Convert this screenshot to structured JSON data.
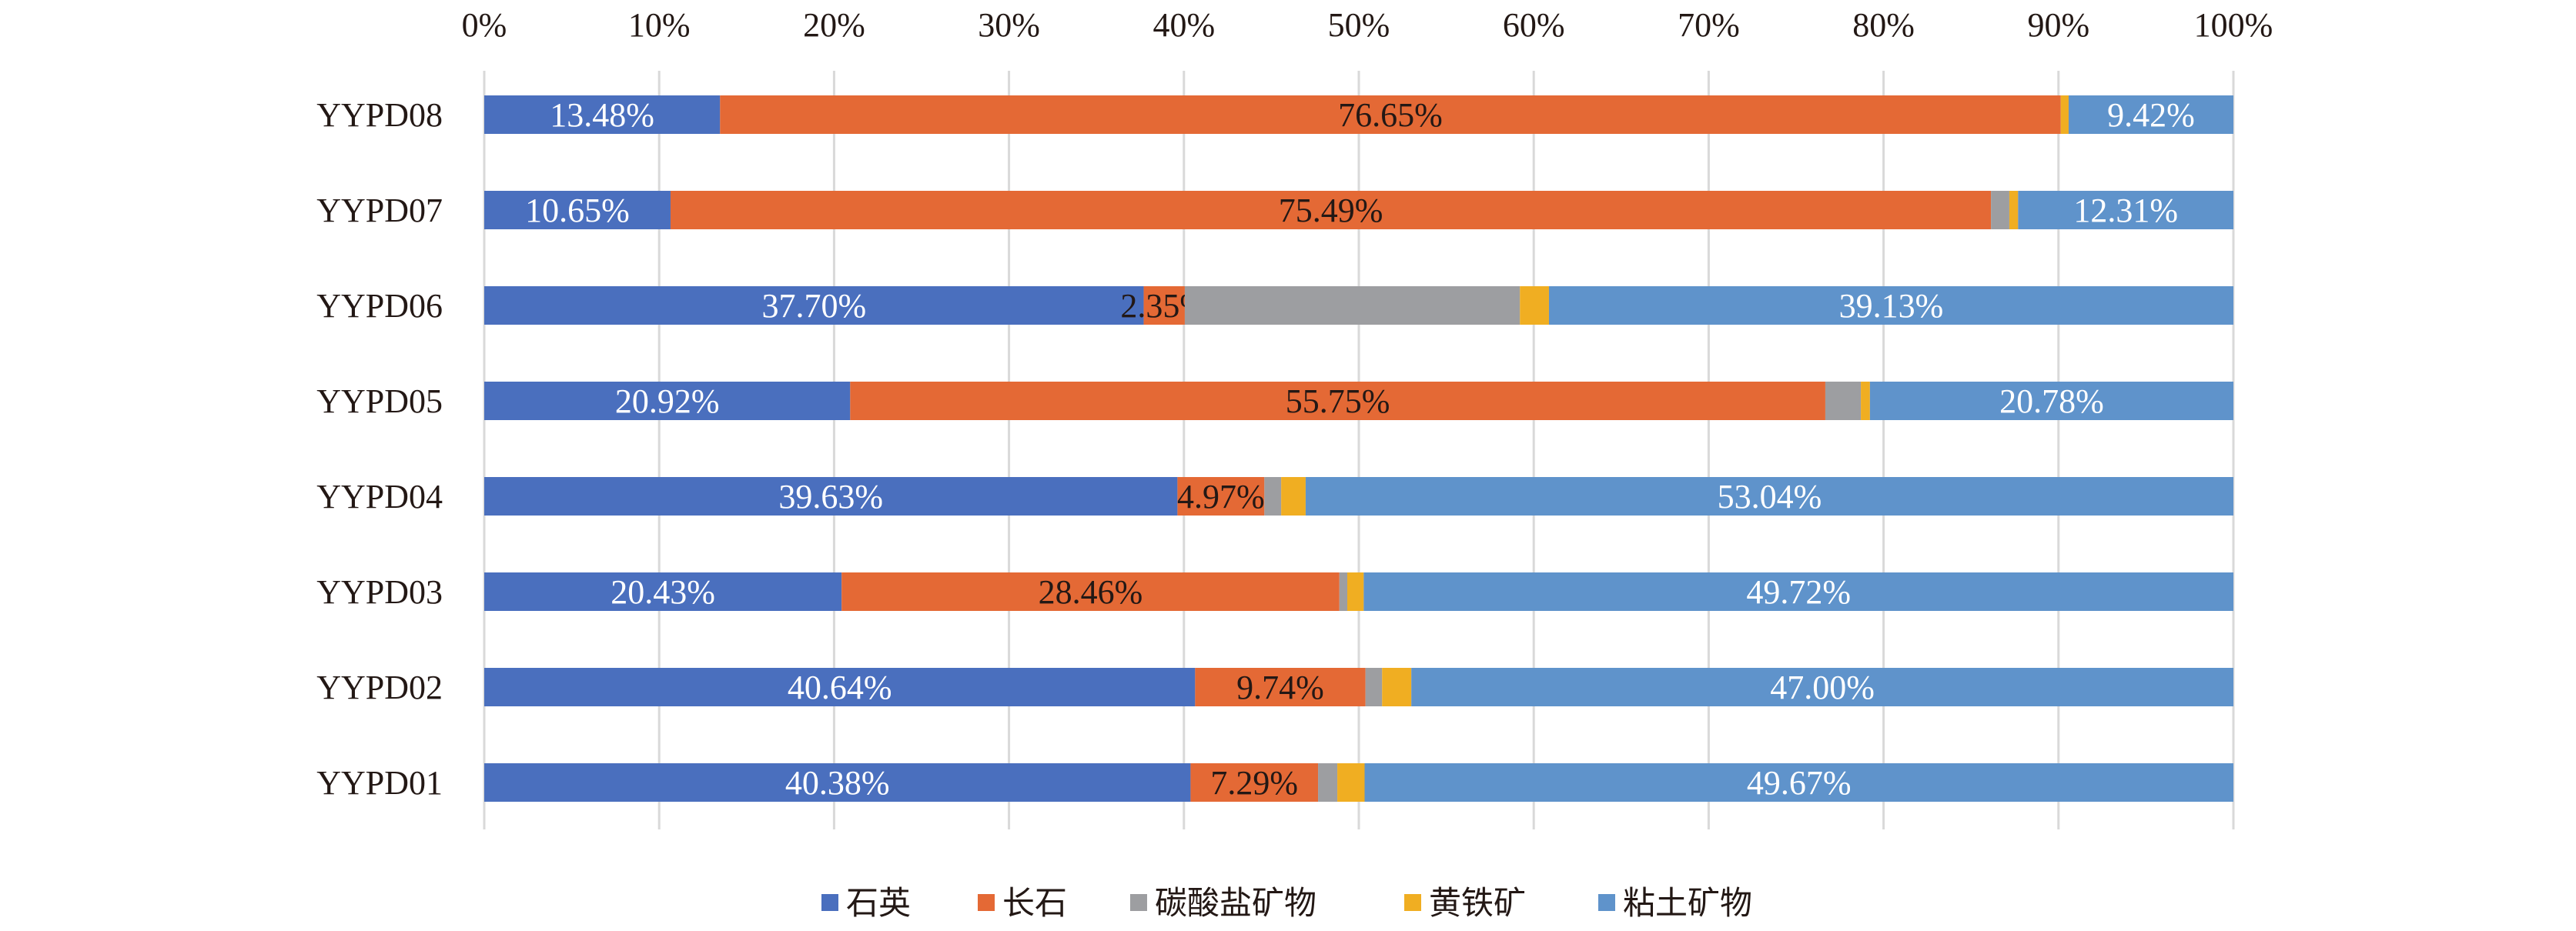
{
  "chart_data": {
    "type": "bar",
    "orientation": "horizontal",
    "stacked": "percent",
    "title": "",
    "xlabel": "",
    "ylabel": "",
    "xlim": [
      0,
      100
    ],
    "x_ticks": [
      "0%",
      "10%",
      "20%",
      "30%",
      "40%",
      "50%",
      "60%",
      "70%",
      "80%",
      "90%",
      "100%"
    ],
    "x_axis_position": "top",
    "grid": true,
    "legend_position": "bottom",
    "categories": [
      "YYPD08",
      "YYPD07",
      "YYPD06",
      "YYPD05",
      "YYPD04",
      "YYPD03",
      "YYPD02",
      "YYPD01"
    ],
    "series": [
      {
        "name": "石英",
        "color": "#4A6FBE",
        "label_color": "#FFFFFF",
        "labeled": true,
        "values": [
          13.48,
          10.65,
          37.7,
          20.92,
          39.63,
          20.43,
          40.64,
          40.38
        ],
        "labels": [
          "13.48%",
          "10.65%",
          "37.70%",
          "20.92%",
          "39.63%",
          "20.43%",
          "40.64%",
          "40.38%"
        ]
      },
      {
        "name": "长石",
        "color": "#E46935",
        "label_color": "#231815",
        "labeled": true,
        "values": [
          76.65,
          75.49,
          2.35,
          55.75,
          4.97,
          28.46,
          9.74,
          7.29
        ],
        "labels": [
          "76.65%",
          "75.49%",
          "2.35%",
          "55.75%",
          "4.97%",
          "28.46%",
          "9.74%",
          "7.29%"
        ]
      },
      {
        "name": "碳酸盐矿物",
        "color": "#9D9EA1",
        "labeled": false,
        "values": [
          0,
          1.05,
          19.16,
          2.03,
          0.96,
          0.45,
          0.95,
          1.1
        ]
      },
      {
        "name": "黄铁矿",
        "color": "#F0AE22",
        "labeled": false,
        "values": [
          0.45,
          0.5,
          1.66,
          0.52,
          1.4,
          0.94,
          1.67,
          1.56
        ]
      },
      {
        "name": "粘土矿物",
        "color": "#5F93CB",
        "label_color": "#FFFFFF",
        "labeled": true,
        "values": [
          9.42,
          12.31,
          39.13,
          20.78,
          53.04,
          49.72,
          47.0,
          49.67
        ],
        "labels": [
          "9.42%",
          "12.31%",
          "39.13%",
          "20.78%",
          "53.04%",
          "49.72%",
          "47.00%",
          "49.67%"
        ]
      }
    ]
  }
}
